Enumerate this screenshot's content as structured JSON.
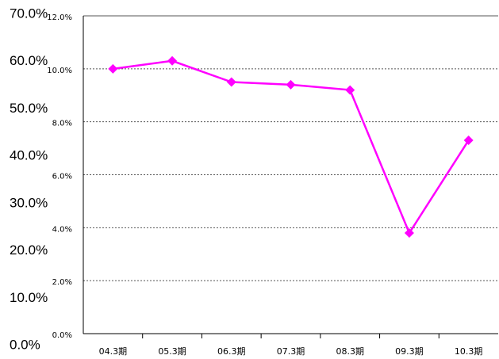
{
  "chart_data": {
    "type": "line",
    "categories": [
      "04.3期",
      "05.3期",
      "06.3期",
      "07.3期",
      "08.3期",
      "09.3期",
      "10.3期"
    ],
    "series": [
      {
        "color": "#ff00ff",
        "values": [
          10.0,
          10.3,
          9.5,
          9.4,
          9.2,
          3.8,
          7.3
        ]
      }
    ],
    "ylim": [
      0,
      12
    ],
    "yticks": [
      {
        "value": 0,
        "label": "0.0%"
      },
      {
        "value": 2,
        "label": "2.0%"
      },
      {
        "value": 4,
        "label": "4.0%"
      },
      {
        "value": 6,
        "label": "6.0%"
      },
      {
        "value": 8,
        "label": "8.0%"
      },
      {
        "value": 10,
        "label": "10.0%"
      },
      {
        "value": 12,
        "label": "12.0%"
      }
    ],
    "y2lim": [
      0,
      70
    ],
    "y2ticks": [
      {
        "value": 0,
        "label": "0.0%"
      },
      {
        "value": 10,
        "label": "10.0%"
      },
      {
        "value": 20,
        "label": "20.0%"
      },
      {
        "value": 30,
        "label": "30.0%"
      },
      {
        "value": 40,
        "label": "40.0%"
      },
      {
        "value": 50,
        "label": "50.0%"
      },
      {
        "value": 60,
        "label": "60.0%"
      },
      {
        "value": 70,
        "label": "70.0%"
      }
    ],
    "grid": true
  }
}
